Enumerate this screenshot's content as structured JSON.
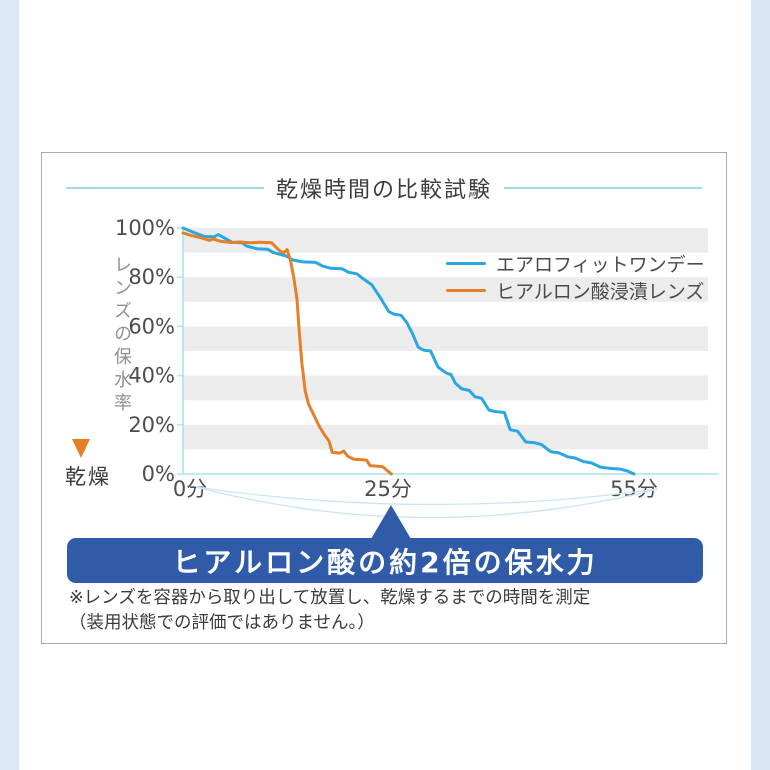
{
  "page": {
    "background_color": "#ffffff",
    "side_strip_color": "#dce9f6",
    "card_border_color": "#ababab"
  },
  "title": "乾燥時間の比較試験",
  "chart_data": {
    "type": "line",
    "title": "乾燥時間の比較試験",
    "xlabel": "",
    "ylabel": "レンズの保水率",
    "x_unit": "分",
    "xlim": [
      0,
      60
    ],
    "ylim": [
      0,
      100
    ],
    "grid": "horizontal-bands",
    "band_color": "#ececec",
    "axis_color": "#aee0f4",
    "legend_position": "top-right",
    "y_ticks": [
      {
        "v": 100,
        "label": "100%"
      },
      {
        "v": 80,
        "label": "80%"
      },
      {
        "v": 60,
        "label": "60%"
      },
      {
        "v": 40,
        "label": "40%"
      },
      {
        "v": 20,
        "label": "20%"
      },
      {
        "v": 0,
        "label": "0%"
      }
    ],
    "x_ticks": [
      {
        "t": 0,
        "label": "0分"
      },
      {
        "t": 25,
        "label": "25分"
      },
      {
        "t": 55,
        "label": "55分"
      }
    ],
    "series": [
      {
        "name": "エアロフィットワンデー",
        "color": "#2ba7e0",
        "points": [
          [
            0,
            100
          ],
          [
            1.3,
            98.2
          ],
          [
            2.6,
            96.6
          ],
          [
            3.8,
            96.4
          ],
          [
            4.3,
            97.3
          ],
          [
            5,
            96
          ],
          [
            6,
            94.2
          ],
          [
            7.2,
            94
          ],
          [
            7.8,
            92.6
          ],
          [
            9,
            91.6
          ],
          [
            10.3,
            91.4
          ],
          [
            11,
            90
          ],
          [
            12.6,
            88.6
          ],
          [
            13.4,
            87
          ],
          [
            14.6,
            86.2
          ],
          [
            16.2,
            86
          ],
          [
            17,
            84.6
          ],
          [
            18,
            83.6
          ],
          [
            19.4,
            83.4
          ],
          [
            20.2,
            82
          ],
          [
            21.2,
            81.4
          ],
          [
            22,
            79.3
          ],
          [
            23,
            77
          ],
          [
            24.1,
            71.5
          ],
          [
            25.1,
            66
          ],
          [
            25.7,
            65
          ],
          [
            26.6,
            64.5
          ],
          [
            27.3,
            61.5
          ],
          [
            28,
            57
          ],
          [
            28.7,
            51.5
          ],
          [
            29.4,
            50.3
          ],
          [
            30.2,
            50
          ],
          [
            31.1,
            43.5
          ],
          [
            32.1,
            41
          ],
          [
            32.7,
            40.4
          ],
          [
            33.2,
            37
          ],
          [
            34,
            34.6
          ],
          [
            34.9,
            34
          ],
          [
            35.6,
            31.4
          ],
          [
            36.4,
            30.8
          ],
          [
            37.3,
            26
          ],
          [
            38,
            25.4
          ],
          [
            39.2,
            25
          ],
          [
            39.9,
            18
          ],
          [
            40.8,
            17.4
          ],
          [
            41.8,
            13
          ],
          [
            42.9,
            12.7
          ],
          [
            43.7,
            12
          ],
          [
            44.9,
            9
          ],
          [
            45.8,
            8.6
          ],
          [
            46.9,
            7
          ],
          [
            47.8,
            6.5
          ],
          [
            48.9,
            5
          ],
          [
            49.8,
            4.5
          ],
          [
            50.9,
            2.8
          ],
          [
            52,
            2.3
          ],
          [
            53.3,
            2
          ],
          [
            54.2,
            1.2
          ],
          [
            55,
            0
          ]
        ]
      },
      {
        "name": "ヒアルロン酸浸漬レンズ",
        "color": "#e57f28",
        "points": [
          [
            0,
            98
          ],
          [
            1,
            97
          ],
          [
            2.2,
            96
          ],
          [
            3.2,
            95
          ],
          [
            3.7,
            95.5
          ],
          [
            4.6,
            94.6
          ],
          [
            5.8,
            94.1
          ],
          [
            7,
            94.3
          ],
          [
            8.2,
            94
          ],
          [
            9.4,
            94.2
          ],
          [
            10.8,
            94
          ],
          [
            11.4,
            92
          ],
          [
            11.9,
            90.4
          ],
          [
            12.3,
            90
          ],
          [
            12.7,
            91.2
          ],
          [
            13.1,
            87
          ],
          [
            13.5,
            80
          ],
          [
            13.9,
            71
          ],
          [
            14.2,
            57
          ],
          [
            14.5,
            45
          ],
          [
            14.9,
            33.8
          ],
          [
            15.3,
            28.4
          ],
          [
            16,
            23.6
          ],
          [
            16.6,
            19.5
          ],
          [
            17.2,
            16.2
          ],
          [
            17.8,
            13.4
          ],
          [
            18.2,
            8.8
          ],
          [
            19.1,
            8.5
          ],
          [
            19.6,
            9.3
          ],
          [
            20.1,
            7.2
          ],
          [
            20.8,
            6
          ],
          [
            21.9,
            5.8
          ],
          [
            22.4,
            5.6
          ],
          [
            22.8,
            3.4
          ],
          [
            23.6,
            3.2
          ],
          [
            24.3,
            3
          ],
          [
            24.7,
            2
          ],
          [
            25.4,
            0
          ]
        ]
      }
    ],
    "annotations": [
      "left-axis gradient arrow from wet (blue) to dry (orange)",
      "time-span arcs from 0分 to 55分 pointing to banner at ~25分"
    ]
  },
  "y_axis_arrow": {
    "label": "レンズの保水率",
    "end_label": "乾燥",
    "top_color": "#2ba7e0",
    "bottom_color": "#e57f28"
  },
  "banner": {
    "text": "ヒアルロン酸の約2倍の保水力",
    "color": "#2f5ba8"
  },
  "footnote": {
    "line1": "※レンズを容器から取り出して放置し、乾燥するまでの時間を測定",
    "line2": "（装用状態での評価ではありません。）"
  }
}
